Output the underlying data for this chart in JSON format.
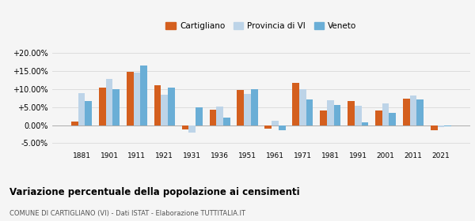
{
  "years": [
    1881,
    1901,
    1911,
    1921,
    1931,
    1936,
    1951,
    1961,
    1971,
    1981,
    1991,
    2001,
    2011,
    2021
  ],
  "cartigliano": [
    1.0,
    10.5,
    14.8,
    11.0,
    -1.2,
    4.2,
    9.8,
    -0.9,
    11.8,
    4.0,
    6.7,
    4.1,
    7.3,
    -1.5
  ],
  "provincia_vi": [
    8.8,
    12.8,
    14.5,
    8.5,
    -2.0,
    5.2,
    8.6,
    1.1,
    10.0,
    7.0,
    5.3,
    6.0,
    8.2,
    -0.5
  ],
  "veneto": [
    6.7,
    9.9,
    16.6,
    10.4,
    5.0,
    2.1,
    9.9,
    -1.5,
    7.1,
    5.5,
    0.7,
    3.3,
    7.1,
    -0.3
  ],
  "color_cartigliano": "#d45f1e",
  "color_provincia": "#bdd4e8",
  "color_veneto": "#6aaed6",
  "title": "Variazione percentuale della popolazione ai censimenti",
  "subtitle": "COMUNE DI CARTIGLIANO (VI) - Dati ISTAT - Elaborazione TUTTITALIA.IT",
  "ylim": [
    -7.0,
    22.5
  ],
  "yticks": [
    -5.0,
    0.0,
    5.0,
    10.0,
    15.0,
    20.0
  ],
  "background_color": "#f5f5f5",
  "grid_color": "#dddddd"
}
